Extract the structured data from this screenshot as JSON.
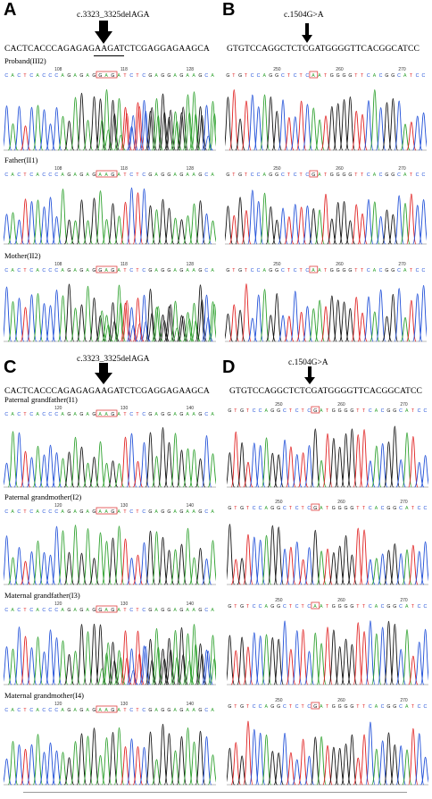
{
  "colors": {
    "A": "#2ca02c",
    "C": "#1f4fd8",
    "G": "#111111",
    "T": "#e02020",
    "box": "#e04040"
  },
  "panels": {
    "A": {
      "letter": "A",
      "mutation": "c.3323_3325delAGA",
      "reference": "CACTCACCCAGAGAGAAGATCTCGAGGAGAAGCA",
      "tracks": [
        {
          "label": "Proband(III2)",
          "positions": [
            "108",
            "118",
            "128"
          ],
          "calls": "CACTCACCCAGAGAGGAGATCTCGAGGAGAAGCA"
        },
        {
          "label": "Father(II1)",
          "positions": [
            "108",
            "118",
            "128"
          ],
          "calls": "CACTCACCCAGAGAGAAGATCTCGAGGAGAAGCA"
        },
        {
          "label": "Mother(II2)",
          "positions": [
            "108",
            "118",
            "128"
          ],
          "calls": "CACTCACCCAGAGAGGAGATCTCGAGGAGAAGCA"
        }
      ]
    },
    "B": {
      "letter": "B",
      "mutation": "c.1504G>A",
      "reference": "GTGTCCAGGCTCTCGATGGGGTTCACGGCATCC",
      "tracks": [
        {
          "label": "",
          "positions": [
            "250",
            "260",
            "270"
          ],
          "calls": "GTGTCCAGGCTCTCAATGGGGTTCACGGCATCC"
        },
        {
          "label": "",
          "positions": [
            "250",
            "260",
            "270"
          ],
          "calls": "GTGTCCAGGCTCTCGATGGGGTTCACGGCATCC"
        },
        {
          "label": "",
          "positions": [
            "250",
            "260",
            "270"
          ],
          "calls": "GTGTCCAGGCTCTCAATGGGGTTCACGGCATCC"
        }
      ]
    },
    "C": {
      "letter": "C",
      "mutation": "c.3323_3325delAGA",
      "reference": "CACTCACCCAGAGAGAAGATCTCGAGGAGAAGCA",
      "tracks": [
        {
          "label": "Paternal grandfather(I1)",
          "positions": [
            "120",
            "130",
            "140"
          ],
          "calls": "CACTCACCCAGAGAGAAGATCTCGAGGAGAAGCA"
        },
        {
          "label": "Paternal grandmother(I2)",
          "positions": [
            "120",
            "130",
            "140"
          ],
          "calls": "CACTCACCCAGAGAGAAGATCTCGAGGAGAAGCA"
        },
        {
          "label": "Maternal grandfather(I3)",
          "positions": [
            "120",
            "130",
            "140"
          ],
          "calls": "CACTCACCCAGAGAGGAGATCTCGAGGAGAAGCA"
        },
        {
          "label": "Maternal grandmother(I4)",
          "positions": [
            "120",
            "130",
            "140"
          ],
          "calls": "CACTCACCCAGAGAGAAGATCTCGAGGAGAAGCA"
        }
      ]
    },
    "D": {
      "letter": "D",
      "mutation": "c.1504G>A",
      "reference": "GTGTCCAGGCTCTCGATGGGGTTCACGGCATCC",
      "tracks": [
        {
          "label": "",
          "positions": [
            "250",
            "260",
            "270"
          ],
          "calls": "GTGTCCAGGCTCTCGATGGGGTTCACGGCATCC"
        },
        {
          "label": "",
          "positions": [
            "250",
            "260",
            "270"
          ],
          "calls": "GTGTCCAGGCTCTCGATGGGGTTCACGGCATCC"
        },
        {
          "label": "",
          "positions": [
            "250",
            "260",
            "270"
          ],
          "calls": "GTGTCCAGGCTCTCAATGGGGTTCACGGCATCC"
        },
        {
          "label": "",
          "positions": [
            "250",
            "260",
            "270"
          ],
          "calls": "GTGTCCAGGCTCTCGATGGGGTTCACGGCATCC"
        }
      ]
    }
  }
}
